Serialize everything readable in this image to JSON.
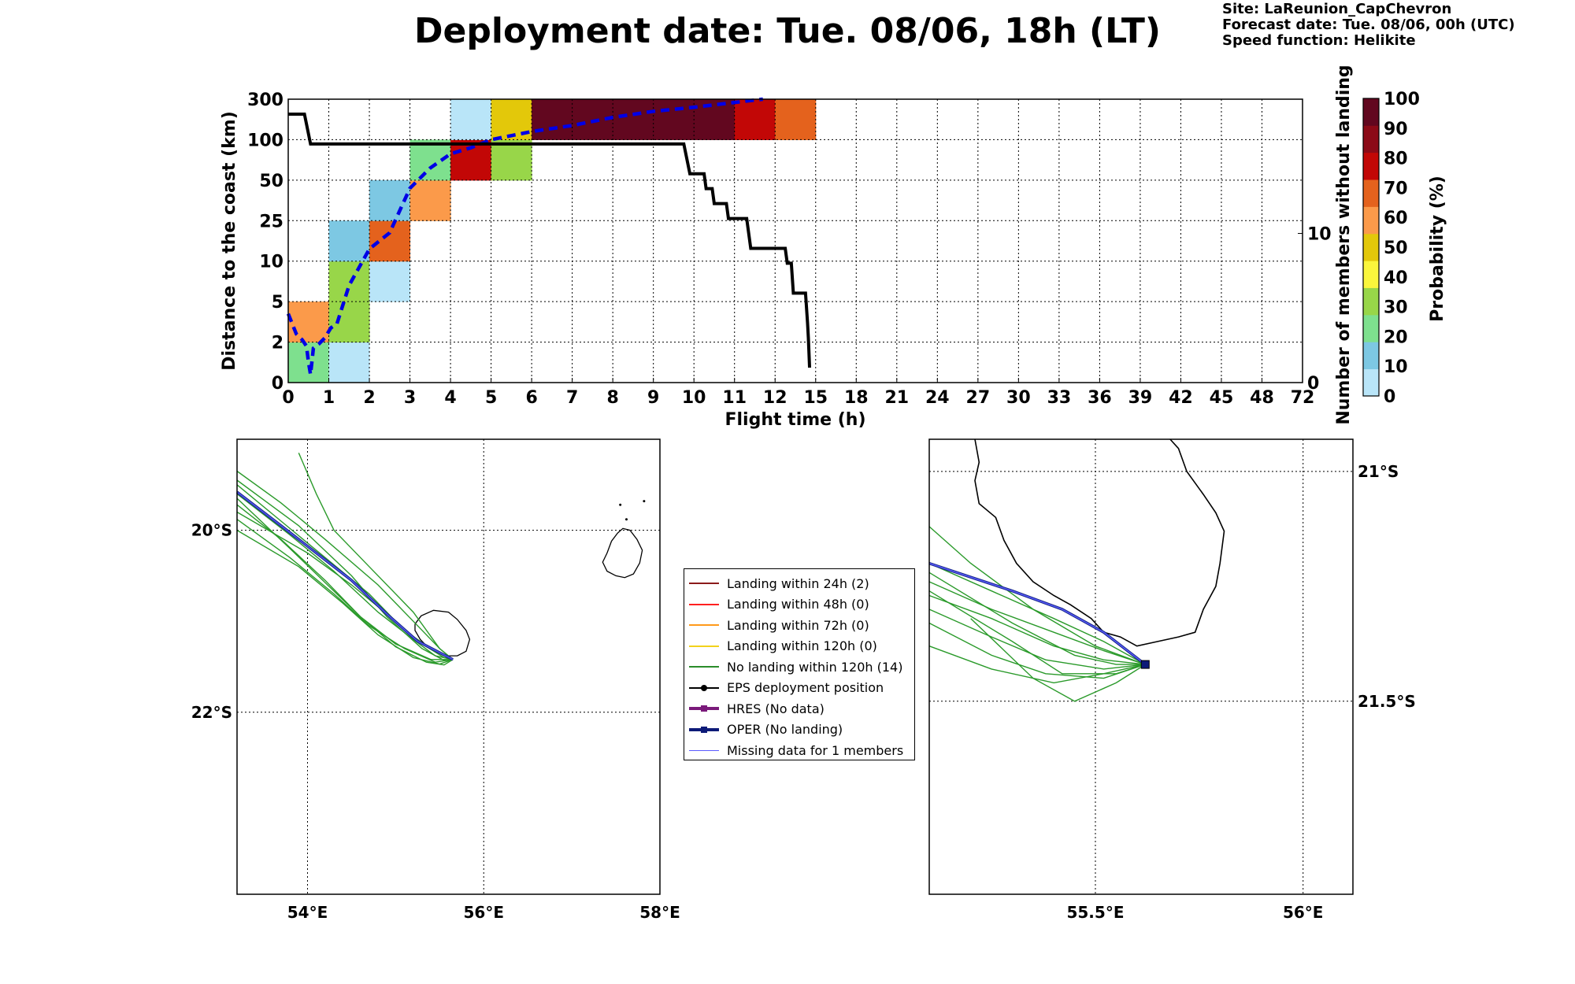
{
  "title": "Deployment date: Tue. 08/06, 18h (LT)",
  "info": {
    "site": "Site: LaReunion_CapChevron",
    "forecast": "Forecast date: Tue. 08/06, 00h (UTC)",
    "speed": "Speed function: Helikite"
  },
  "chart_data": [
    {
      "type": "heatmap",
      "xlabel": "Flight time (h)",
      "ylabel": "Distance to the coast (km)",
      "y2label": "Number of members without landing",
      "colorbar_label": "Probability (%)",
      "x_ticks": [
        "0",
        "1",
        "2",
        "3",
        "4",
        "5",
        "6",
        "7",
        "8",
        "9",
        "10",
        "11",
        "12",
        "15",
        "18",
        "21",
        "24",
        "27",
        "30",
        "33",
        "36",
        "39",
        "42",
        "45",
        "48",
        "72"
      ],
      "y_ticks": [
        "0",
        "2",
        "5",
        "10",
        "25",
        "50",
        "100",
        "300"
      ],
      "y2_ticks": [
        "0",
        "10"
      ],
      "y2lim": [
        0,
        19
      ],
      "colorbar": {
        "ticks": [
          "0",
          "10",
          "20",
          "30",
          "40",
          "50",
          "60",
          "70",
          "80",
          "90",
          "100"
        ],
        "colors": [
          "#b9e5f8",
          "#7dc8e3",
          "#7ee08e",
          "#98d649",
          "#faf63c",
          "#e3c80a",
          "#fb9a4a",
          "#e4621d",
          "#c20706",
          "#8c0a17",
          "#62071f"
        ]
      },
      "cells": [
        {
          "x": 0,
          "y": 0,
          "p": 25
        },
        {
          "x": 0,
          "y": 1,
          "p": 65
        },
        {
          "x": 1,
          "y": 0,
          "p": 5
        },
        {
          "x": 1,
          "y": 1,
          "p": 35
        },
        {
          "x": 1,
          "y": 2,
          "p": 35
        },
        {
          "x": 1,
          "y": 3,
          "p": 15
        },
        {
          "x": 2,
          "y": 2,
          "p": 5
        },
        {
          "x": 2,
          "y": 3,
          "p": 75
        },
        {
          "x": 2,
          "y": 4,
          "p": 15
        },
        {
          "x": 3,
          "y": 4,
          "p": 65
        },
        {
          "x": 3,
          "y": 5,
          "p": 25
        },
        {
          "x": 4,
          "y": 5,
          "p": 85
        },
        {
          "x": 4,
          "y": 6,
          "p": 5
        },
        {
          "x": 5,
          "y": 5,
          "p": 35
        },
        {
          "x": 5,
          "y": 6,
          "p": 55
        },
        {
          "x": 6,
          "y": 6,
          "p": 100
        },
        {
          "x": 7,
          "y": 6,
          "p": 100
        },
        {
          "x": 8,
          "y": 6,
          "p": 100
        },
        {
          "x": 9,
          "y": 6,
          "p": 100
        },
        {
          "x": 10,
          "y": 6,
          "p": 100
        },
        {
          "x": 11,
          "y": 6,
          "p": 85
        },
        {
          "x": 12,
          "y": 6,
          "p": 75
        }
      ],
      "median_distance": {
        "style": "blue dashed",
        "x": [
          0,
          0.08,
          0.2,
          0.35,
          0.45,
          0.5,
          0.55,
          0.62,
          0.75,
          0.9,
          1.05,
          1.2,
          1.5,
          2,
          2.5,
          3,
          3.5,
          4,
          4.5,
          5,
          5.5,
          6,
          7,
          8,
          9,
          10,
          11,
          11.7
        ],
        "y": [
          1.7,
          1.5,
          1.2,
          1.05,
          0.9,
          0.5,
          0.2,
          0.85,
          0.95,
          1.1,
          1.35,
          1.45,
          2.4,
          3.3,
          3.7,
          4.8,
          5.3,
          5.65,
          5.8,
          6.0,
          6.1,
          6.2,
          6.35,
          6.55,
          6.7,
          6.8,
          6.92,
          7.0
        ]
      },
      "members_without_landing": {
        "style": "black solid",
        "x": [
          0,
          0.4,
          0.55,
          9.75,
          9.9,
          10.25,
          10.3,
          10.45,
          10.5,
          10.8,
          10.85,
          11.3,
          11.4,
          12.25,
          12.3,
          12.4,
          12.45,
          12.75,
          12.8,
          12.82,
          12.85
        ],
        "y": [
          18,
          18,
          16,
          16,
          14,
          14,
          13,
          13,
          12,
          12,
          11,
          11,
          9,
          9,
          8,
          8,
          6,
          6,
          4,
          3,
          1
        ]
      }
    },
    {
      "type": "line",
      "map": "left",
      "x_ticks": [
        "54°E",
        "56°E",
        "58°E"
      ],
      "y_ticks": [
        "20°S",
        "22°S"
      ],
      "xlim": [
        53.2,
        58.0
      ],
      "ylim": [
        -24.0,
        -19.0
      ]
    },
    {
      "type": "line",
      "map": "right",
      "x_ticks": [
        "55.5°E",
        "56°E"
      ],
      "y_ticks": [
        "21°S",
        "21.5°S"
      ],
      "xlim": [
        55.1,
        56.12
      ],
      "ylim": [
        -21.92,
        -20.93
      ]
    }
  ],
  "legend": [
    {
      "label": "Landing within 24h (2)",
      "color": "#8b1a1a",
      "marker": "none",
      "width": 2
    },
    {
      "label": "Landing within 48h (0)",
      "color": "#ff2020",
      "marker": "none",
      "width": 2
    },
    {
      "label": "Landing within 72h (0)",
      "color": "#ff9a1a",
      "marker": "none",
      "width": 2
    },
    {
      "label": "Landing within 120h (0)",
      "color": "#f2d21c",
      "marker": "none",
      "width": 2
    },
    {
      "label": "No landing within 120h (14)",
      "color": "#2a8c2a",
      "marker": "none",
      "width": 2
    },
    {
      "label": "EPS deployment position",
      "color": "#000000",
      "marker": "circle",
      "width": 2
    },
    {
      "label": "HRES (No data)",
      "color": "#7a1a7a",
      "marker": "square",
      "width": 4
    },
    {
      "label": "OPER (No landing)",
      "color": "#0d1a78",
      "marker": "square",
      "width": 4
    },
    {
      "label": "Missing data for 1 members",
      "color": "#5a5aff",
      "marker": "none",
      "width": 1
    }
  ]
}
